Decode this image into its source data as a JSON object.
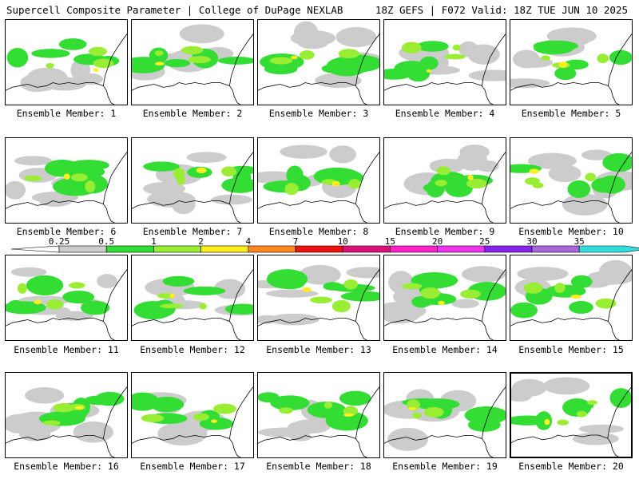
{
  "header": {
    "left_title": "Supercell Composite Parameter | College of DuPage NEXLAB",
    "right_title": "18Z GEFS | F072 Valid: 18Z TUE JUN 10 2025"
  },
  "colorbar": {
    "labels": [
      "0.25",
      "0.5",
      "1",
      "2",
      "4",
      "7",
      "10",
      "15",
      "20",
      "25",
      "30",
      "35"
    ],
    "colors": [
      "#cccccc",
      "#33dd33",
      "#99ee33",
      "#ffee22",
      "#ff8822",
      "#ee1111",
      "#dd1177",
      "#ff22cc",
      "#ee33ee",
      "#8822ee",
      "#aa66dd",
      "#33dddd"
    ]
  },
  "panels": [
    {
      "label": "Ensemble Member: 1"
    },
    {
      "label": "Ensemble Member: 2"
    },
    {
      "label": "Ensemble Member: 3"
    },
    {
      "label": "Ensemble Member: 4"
    },
    {
      "label": "Ensemble Member: 5"
    },
    {
      "label": "Ensemble Member: 6"
    },
    {
      "label": "Ensemble Member: 7"
    },
    {
      "label": "Ensemble Member: 8"
    },
    {
      "label": "Ensemble Member: 9"
    },
    {
      "label": "Ensemble Member: 10"
    },
    {
      "label": "Ensemble Member: 11"
    },
    {
      "label": "Ensemble Member: 12"
    },
    {
      "label": "Ensemble Member: 13"
    },
    {
      "label": "Ensemble Member: 14"
    },
    {
      "label": "Ensemble Member: 15"
    },
    {
      "label": "Ensemble Member: 16"
    },
    {
      "label": "Ensemble Member: 17"
    },
    {
      "label": "Ensemble Member: 18"
    },
    {
      "label": "Ensemble Member: 19"
    },
    {
      "label": "Ensemble Member: 20",
      "highlighted": true
    }
  ]
}
